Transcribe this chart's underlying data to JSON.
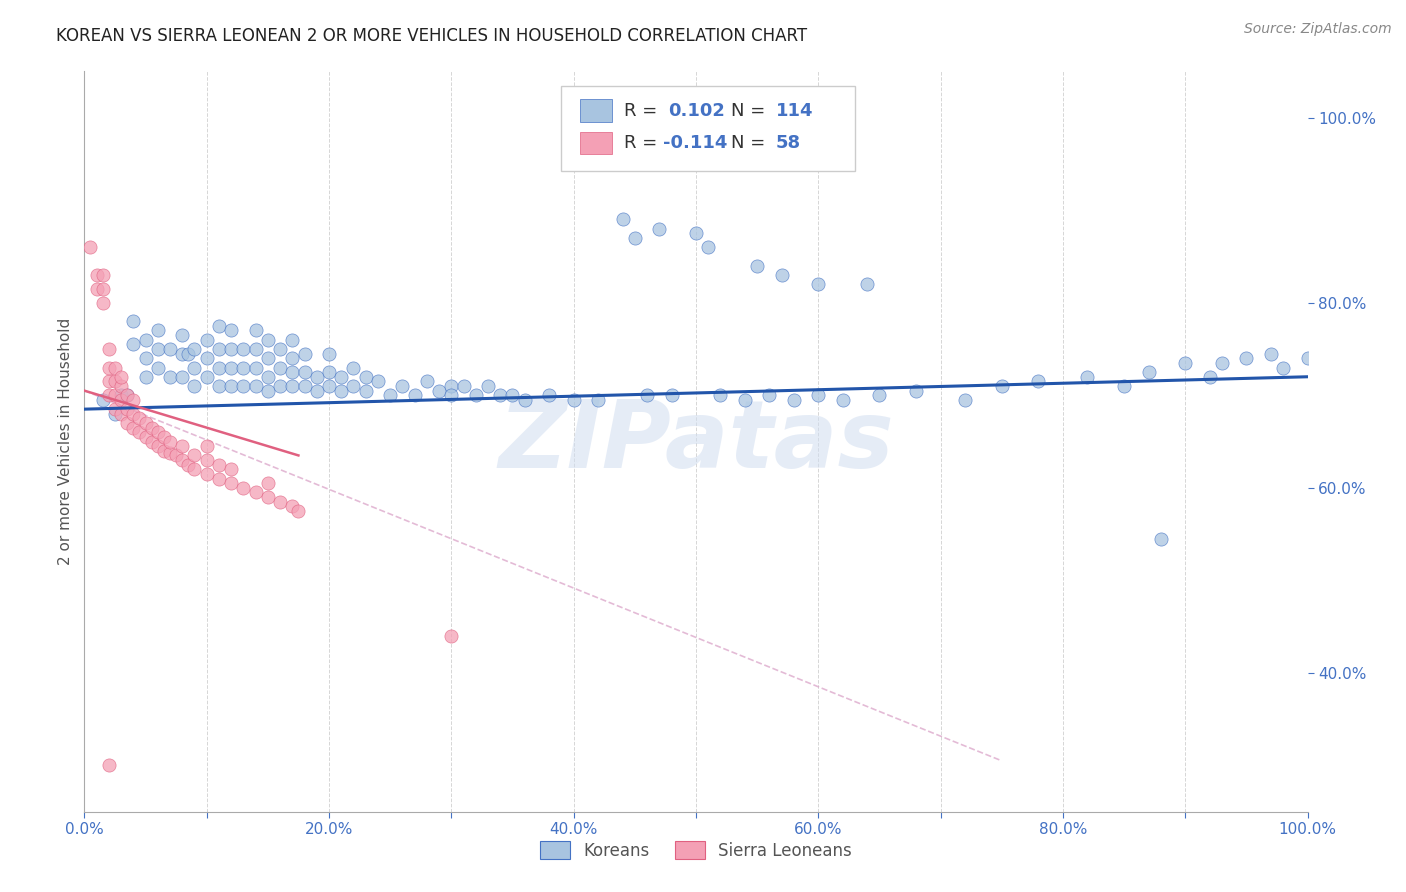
{
  "title": "KOREAN VS SIERRA LEONEAN 2 OR MORE VEHICLES IN HOUSEHOLD CORRELATION CHART",
  "source": "Source: ZipAtlas.com",
  "ylabel": "2 or more Vehicles in Household",
  "xlim": [
    0,
    1
  ],
  "ylim": [
    0.25,
    1.05
  ],
  "xticks": [
    0.0,
    0.1,
    0.2,
    0.3,
    0.4,
    0.5,
    0.6,
    0.7,
    0.8,
    0.9,
    1.0
  ],
  "xticklabels": [
    "0.0%",
    "",
    "20.0%",
    "",
    "40.0%",
    "",
    "60.0%",
    "",
    "80.0%",
    "",
    "100.0%"
  ],
  "yticks_right": [
    0.4,
    0.6,
    0.8,
    1.0
  ],
  "yticklabels_right": [
    "40.0%",
    "60.0%",
    "80.0%",
    "100.0%"
  ],
  "korean_fill": "#a8c4e0",
  "korean_edge": "#4472c4",
  "sierra_fill": "#f4a0b5",
  "sierra_edge": "#e06080",
  "korean_trend_color": "#2255aa",
  "sierra_trend_color": "#e06080",
  "sierra_dash_color": "#ddaacc",
  "background_color": "#ffffff",
  "grid_color": "#cccccc",
  "title_fontsize": 12,
  "tick_color": "#4472c4",
  "label_color": "#555555",
  "watermark_color": "#d0ddf0",
  "watermark_text": "ZIPatas",
  "legend_r1_label": "R = ",
  "legend_r1_val": "0.102",
  "legend_r1_n": "114",
  "legend_r2_label": "R = ",
  "legend_r2_val": "-0.114",
  "legend_r2_n": "58",
  "korean_trend": [
    0.0,
    1.0,
    0.685,
    0.72
  ],
  "sierra_trend_solid": [
    0.0,
    0.175,
    0.705,
    0.635
  ],
  "sierra_trend_dash": [
    0.0,
    0.75,
    0.705,
    0.305
  ],
  "korean_x": [
    0.015,
    0.025,
    0.03,
    0.035,
    0.04,
    0.04,
    0.05,
    0.05,
    0.05,
    0.06,
    0.06,
    0.06,
    0.07,
    0.07,
    0.08,
    0.08,
    0.08,
    0.085,
    0.09,
    0.09,
    0.09,
    0.1,
    0.1,
    0.1,
    0.11,
    0.11,
    0.11,
    0.11,
    0.12,
    0.12,
    0.12,
    0.12,
    0.13,
    0.13,
    0.13,
    0.14,
    0.14,
    0.14,
    0.14,
    0.15,
    0.15,
    0.15,
    0.15,
    0.16,
    0.16,
    0.16,
    0.17,
    0.17,
    0.17,
    0.17,
    0.18,
    0.18,
    0.18,
    0.19,
    0.19,
    0.2,
    0.2,
    0.2,
    0.21,
    0.21,
    0.22,
    0.22,
    0.23,
    0.23,
    0.24,
    0.25,
    0.26,
    0.27,
    0.28,
    0.29,
    0.3,
    0.3,
    0.31,
    0.32,
    0.33,
    0.34,
    0.35,
    0.36,
    0.38,
    0.4,
    0.42,
    0.44,
    0.45,
    0.46,
    0.47,
    0.48,
    0.5,
    0.51,
    0.52,
    0.54,
    0.56,
    0.58,
    0.6,
    0.62,
    0.65,
    0.68,
    0.72,
    0.75,
    0.78,
    0.82,
    0.85,
    0.87,
    0.88,
    0.9,
    0.92,
    0.93,
    0.95,
    0.97,
    0.98,
    1.0,
    0.55,
    0.57,
    0.6,
    0.64
  ],
  "korean_y": [
    0.695,
    0.68,
    0.7,
    0.7,
    0.755,
    0.78,
    0.72,
    0.74,
    0.76,
    0.73,
    0.75,
    0.77,
    0.72,
    0.75,
    0.72,
    0.745,
    0.765,
    0.745,
    0.71,
    0.73,
    0.75,
    0.72,
    0.74,
    0.76,
    0.71,
    0.73,
    0.75,
    0.775,
    0.71,
    0.73,
    0.75,
    0.77,
    0.71,
    0.73,
    0.75,
    0.71,
    0.73,
    0.75,
    0.77,
    0.705,
    0.72,
    0.74,
    0.76,
    0.71,
    0.73,
    0.75,
    0.71,
    0.725,
    0.74,
    0.76,
    0.71,
    0.725,
    0.745,
    0.705,
    0.72,
    0.71,
    0.725,
    0.745,
    0.705,
    0.72,
    0.71,
    0.73,
    0.705,
    0.72,
    0.715,
    0.7,
    0.71,
    0.7,
    0.715,
    0.705,
    0.71,
    0.7,
    0.71,
    0.7,
    0.71,
    0.7,
    0.7,
    0.695,
    0.7,
    0.695,
    0.695,
    0.89,
    0.87,
    0.7,
    0.88,
    0.7,
    0.875,
    0.86,
    0.7,
    0.695,
    0.7,
    0.695,
    0.7,
    0.695,
    0.7,
    0.705,
    0.695,
    0.71,
    0.715,
    0.72,
    0.71,
    0.725,
    0.545,
    0.735,
    0.72,
    0.735,
    0.74,
    0.745,
    0.73,
    0.74,
    0.84,
    0.83,
    0.82,
    0.82
  ],
  "sierra_x": [
    0.005,
    0.01,
    0.01,
    0.015,
    0.015,
    0.015,
    0.02,
    0.02,
    0.02,
    0.02,
    0.025,
    0.025,
    0.025,
    0.025,
    0.03,
    0.03,
    0.03,
    0.03,
    0.035,
    0.035,
    0.035,
    0.04,
    0.04,
    0.04,
    0.045,
    0.045,
    0.05,
    0.05,
    0.055,
    0.055,
    0.06,
    0.06,
    0.065,
    0.065,
    0.07,
    0.07,
    0.075,
    0.08,
    0.08,
    0.085,
    0.09,
    0.09,
    0.1,
    0.1,
    0.1,
    0.11,
    0.11,
    0.12,
    0.12,
    0.13,
    0.14,
    0.15,
    0.15,
    0.16,
    0.17,
    0.175,
    0.02,
    0.3
  ],
  "sierra_y": [
    0.86,
    0.815,
    0.83,
    0.8,
    0.815,
    0.83,
    0.7,
    0.715,
    0.73,
    0.75,
    0.685,
    0.7,
    0.715,
    0.73,
    0.68,
    0.695,
    0.71,
    0.72,
    0.67,
    0.685,
    0.7,
    0.665,
    0.68,
    0.695,
    0.66,
    0.675,
    0.655,
    0.67,
    0.65,
    0.665,
    0.645,
    0.66,
    0.64,
    0.655,
    0.638,
    0.65,
    0.635,
    0.63,
    0.645,
    0.625,
    0.62,
    0.635,
    0.615,
    0.63,
    0.645,
    0.61,
    0.625,
    0.605,
    0.62,
    0.6,
    0.595,
    0.59,
    0.605,
    0.585,
    0.58,
    0.575,
    0.3,
    0.44
  ]
}
